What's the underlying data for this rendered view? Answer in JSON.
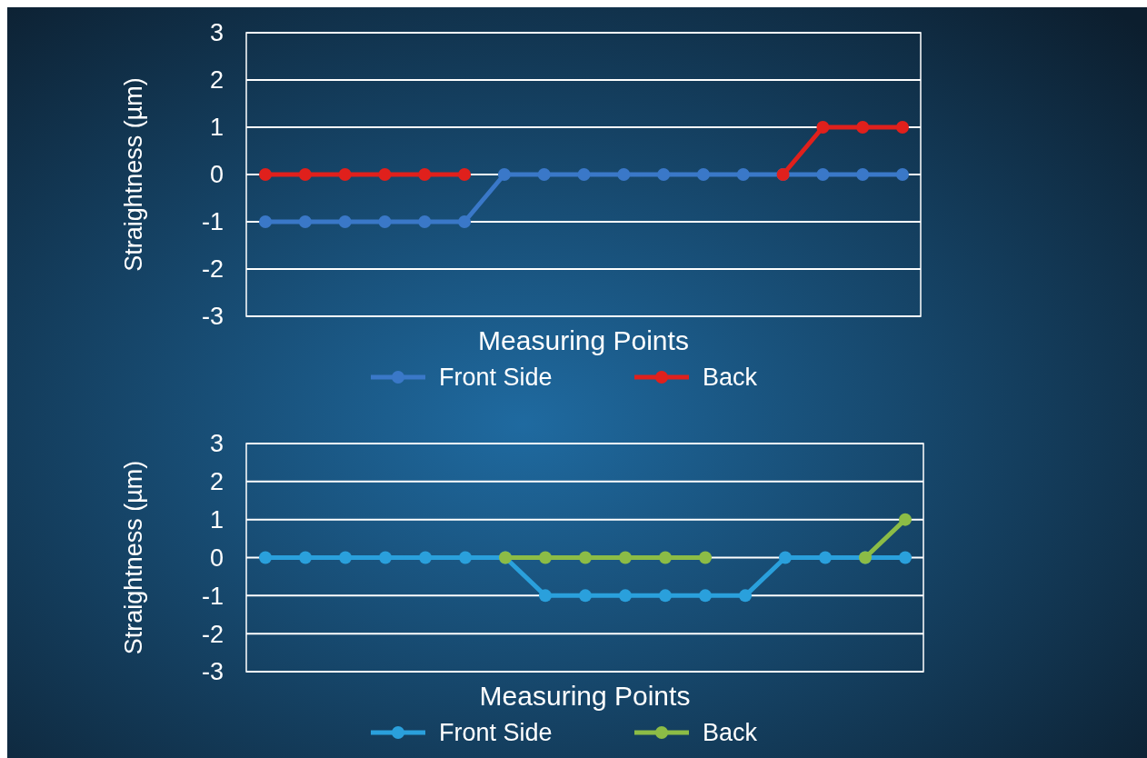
{
  "chart_data": [
    {
      "type": "line",
      "xlabel": "Measuring Points",
      "ylabel": "Straightness (µm)",
      "categories": [
        null,
        null,
        null,
        null,
        null,
        null,
        null,
        null,
        null,
        null,
        null,
        null,
        null,
        null,
        null,
        null,
        null
      ],
      "ylim": [
        -3,
        3
      ],
      "yticks": [
        -3,
        -2,
        -1,
        0,
        1,
        2,
        3
      ],
      "grid": "y",
      "legend": "bottom",
      "marker": "circle",
      "line_style": "solid",
      "series": [
        {
          "name": "Front Side",
          "color": "#3a78c8",
          "values": [
            -1,
            -1,
            -1,
            -1,
            -1,
            -1,
            0,
            0,
            0,
            0,
            0,
            0,
            0,
            0,
            0,
            0,
            0
          ]
        },
        {
          "name": "Back",
          "color": "#e0201c",
          "values": [
            0,
            0,
            0,
            0,
            0,
            0,
            null,
            null,
            null,
            null,
            null,
            null,
            null,
            0,
            1,
            1,
            1
          ]
        }
      ]
    },
    {
      "type": "line",
      "xlabel": "Measuring Points",
      "ylabel": "Straightness (µm)",
      "categories": [
        null,
        null,
        null,
        null,
        null,
        null,
        null,
        null,
        null,
        null,
        null,
        null,
        null,
        null,
        null,
        null,
        null
      ],
      "ylim": [
        -3,
        3
      ],
      "yticks": [
        -3,
        -2,
        -1,
        0,
        1,
        2,
        3
      ],
      "grid": "y",
      "legend": "bottom",
      "marker": "circle",
      "line_style": "solid",
      "series": [
        {
          "name": "Front Side",
          "color": "#2aa0dc",
          "values": [
            0,
            0,
            0,
            0,
            0,
            0,
            0,
            -1,
            -1,
            -1,
            -1,
            -1,
            -1,
            0,
            0,
            0,
            0
          ]
        },
        {
          "name": "Back",
          "color": "#8cbc46",
          "values": [
            null,
            null,
            null,
            null,
            null,
            null,
            0,
            0,
            0,
            0,
            0,
            0,
            null,
            null,
            null,
            0,
            1
          ]
        }
      ]
    }
  ]
}
